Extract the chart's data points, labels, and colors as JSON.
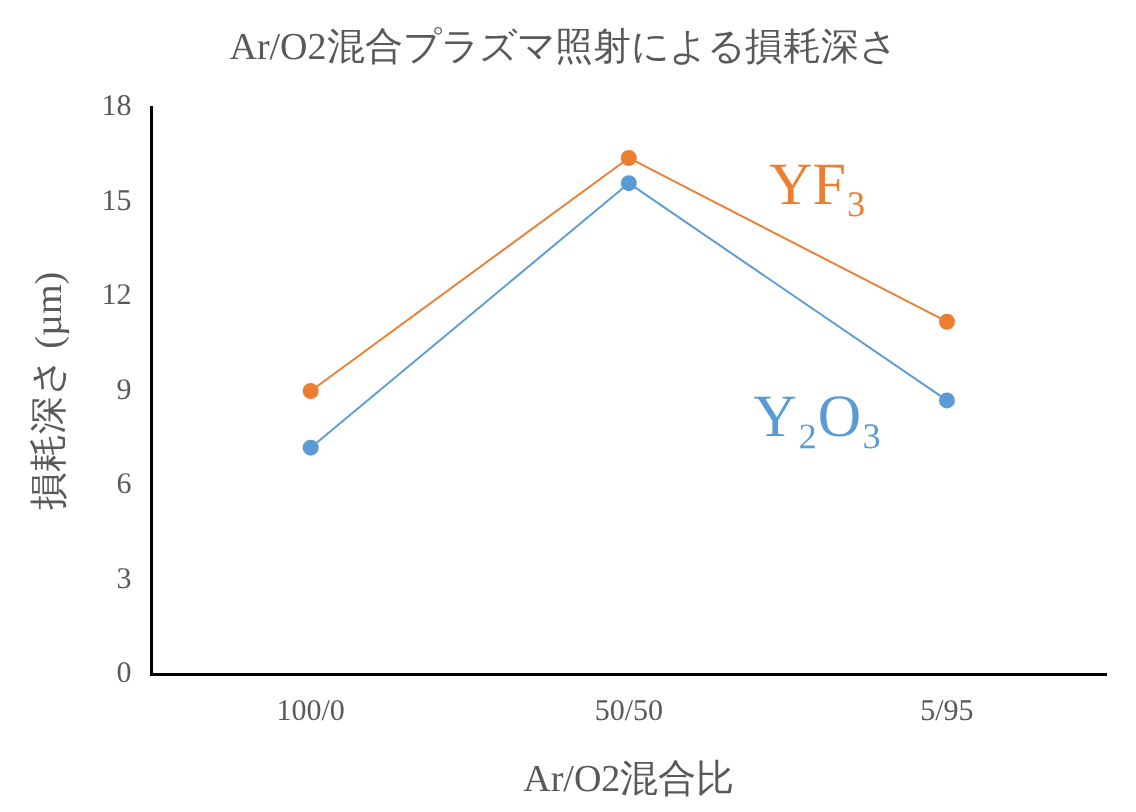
{
  "chart_data": {
    "type": "line",
    "title": "Ar/O2混合プラズマ照射による損耗深さ",
    "xlabel": "Ar/O2混合比",
    "ylabel": "損耗深さ (µm)",
    "categories": [
      "100/0",
      "50/50",
      "5/95"
    ],
    "series": [
      {
        "name": "YF₃",
        "color": "#ed7d31",
        "values": [
          9.0,
          16.4,
          11.2
        ]
      },
      {
        "name": "Y₂O₃",
        "color": "#5b9bd5",
        "values": [
          7.2,
          15.6,
          8.7
        ]
      }
    ],
    "ylim": [
      0,
      18
    ],
    "yticks": [
      0,
      3,
      6,
      9,
      12,
      15,
      18
    ],
    "grid": false,
    "legend": false,
    "marker": "circle",
    "line_style": "solid"
  }
}
